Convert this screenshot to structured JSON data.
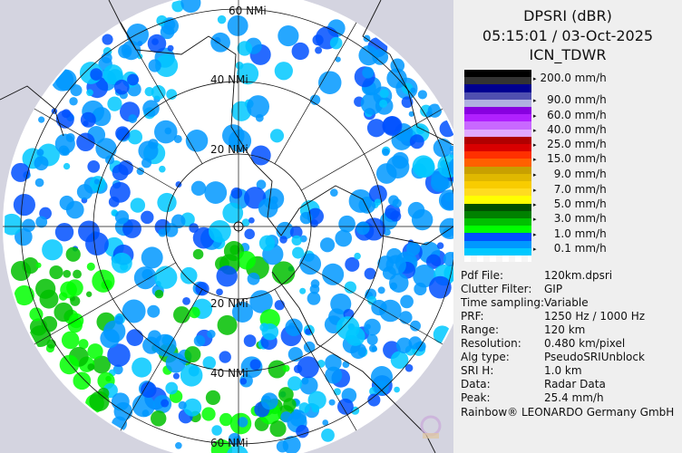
{
  "header": {
    "product": "DPSRI (dBR)",
    "datetime": "05:15:01 / 03-Oct-2025",
    "site": "ICN_TDWR"
  },
  "map": {
    "ring_labels_top": [
      "60 NMi",
      "40 NMi",
      "20 NMi"
    ],
    "ring_labels_bottom": [
      "20 NMi",
      "40 NMi",
      "60 NMi"
    ],
    "background_color": "#d4d4e0",
    "coverage_color": "#ffffff"
  },
  "legend": {
    "bands": [
      "#000000",
      "#333333",
      "#000090",
      "#5050b0",
      "#b0b0e0",
      "#8800e0",
      "#b020ff",
      "#c868ff",
      "#e0a8ff",
      "#b00000",
      "#d80000",
      "#ff3000",
      "#ff6000",
      "#c8a000",
      "#e0b800",
      "#f8cc00",
      "#ffdc20",
      "#ffff00",
      "#005000",
      "#008000",
      "#00c000",
      "#00ff00",
      "#0050ff",
      "#0098ff",
      "#00c8ff"
    ],
    "labels": [
      "200.0 mm/h",
      "  90.0 mm/h",
      "  60.0 mm/h",
      "  40.0 mm/h",
      "  25.0 mm/h",
      "  15.0 mm/h",
      "    9.0 mm/h",
      "    7.0 mm/h",
      "    5.0 mm/h",
      "    3.0 mm/h",
      "    1.0 mm/h",
      "    0.1 mm/h"
    ]
  },
  "info": [
    {
      "key": "Pdf File:",
      "value": "120km.dpsri"
    },
    {
      "key": "Clutter Filter:",
      "value": "GIP"
    },
    {
      "key": "Time sampling:",
      "value": "Variable"
    },
    {
      "key": "PRF:",
      "value": "1250 Hz / 1000 Hz"
    },
    {
      "key": "Range:",
      "value": "120 km"
    },
    {
      "key": "Resolution:",
      "value": "0.480 km/pixel"
    },
    {
      "key": "Alg type:",
      "value": "PseudoSRIUnblock"
    },
    {
      "key": "SRI H:",
      "value": "1.0 km"
    },
    {
      "key": "Data:",
      "value": "Radar Data"
    },
    {
      "key": "Peak:",
      "value": "25.4 mm/h"
    }
  ],
  "footer": "Rainbow® LEONARDO Germany GmbH"
}
